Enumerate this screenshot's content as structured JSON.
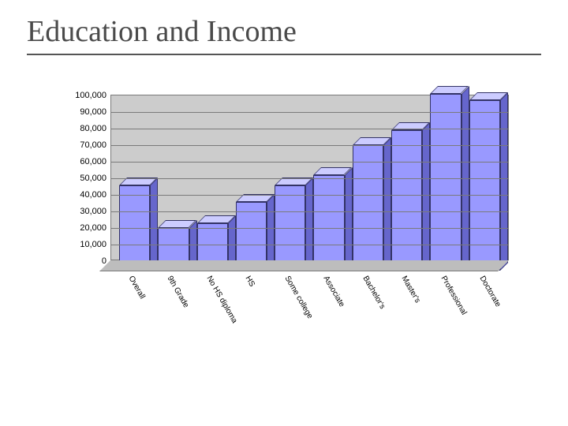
{
  "title": "Education and Income",
  "chart": {
    "type": "bar-3d",
    "ylim": [
      0,
      100000
    ],
    "ytick_step": 10000,
    "y_tick_labels": [
      "0",
      "10,000",
      "20,000",
      "30,000",
      "40,000",
      "50,000",
      "60,000",
      "70,000",
      "80,000",
      "90,000",
      "100,000"
    ],
    "plot_background": "#cccccc",
    "floor_color": "#bdbdbd",
    "grid_color": "#7a7a7a",
    "bar_front_color": "#9999ff",
    "bar_side_color": "#6666cc",
    "bar_top_color": "#ccccff",
    "bar_border_color": "#333366",
    "label_fontsize": 11,
    "categories": [
      {
        "label": "Overall",
        "value": 45000
      },
      {
        "label": "9th Grade",
        "value": 19000
      },
      {
        "label": "No HS diploma",
        "value": 22000
      },
      {
        "label": "HS",
        "value": 35000
      },
      {
        "label": "Some college",
        "value": 45000
      },
      {
        "label": "Associate",
        "value": 51000
      },
      {
        "label": "Bachelor's",
        "value": 69000
      },
      {
        "label": "Master's",
        "value": 78000
      },
      {
        "label": "Professional",
        "value": 100000
      },
      {
        "label": "Doctorate",
        "value": 96000
      }
    ]
  }
}
